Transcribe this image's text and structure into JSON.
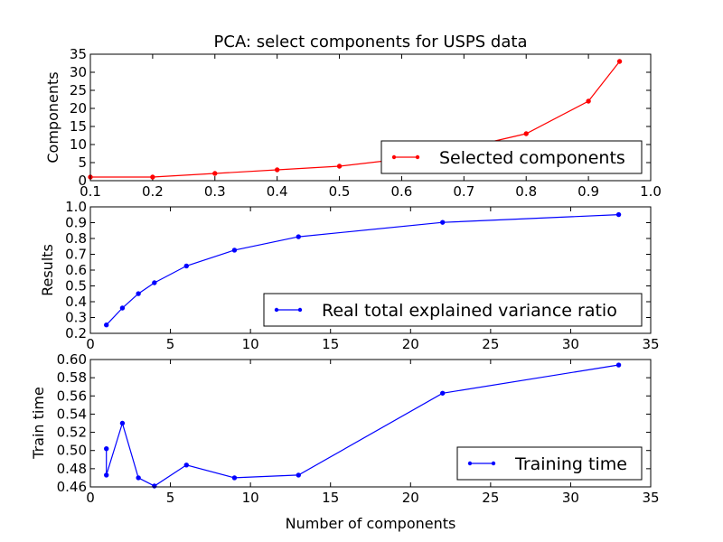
{
  "chart_data": [
    {
      "type": "line",
      "title": "PCA: select components for USPS data",
      "xlabel": "",
      "ylabel": "Components",
      "xlim": [
        0.1,
        1.0
      ],
      "ylim": [
        0,
        35
      ],
      "xticks": [
        "0.1",
        "0.2",
        "0.3",
        "0.4",
        "0.5",
        "0.6",
        "0.7",
        "0.8",
        "0.9",
        "1.0"
      ],
      "yticks": [
        "0",
        "5",
        "10",
        "15",
        "20",
        "25",
        "30",
        "35"
      ],
      "legend_position": "lower-right",
      "series": [
        {
          "name": "Selected components",
          "color": "#ff0000",
          "x": [
            0.1,
            0.2,
            0.3,
            0.4,
            0.5,
            0.6,
            0.7,
            0.8,
            0.9,
            0.95
          ],
          "y": [
            1,
            1,
            2,
            3,
            4,
            6,
            9,
            13,
            22,
            33
          ]
        }
      ]
    },
    {
      "type": "line",
      "title": "",
      "xlabel": "",
      "ylabel": "Results",
      "xlim": [
        0,
        35
      ],
      "ylim": [
        0.2,
        1.0
      ],
      "xticks": [
        "0",
        "5",
        "10",
        "15",
        "20",
        "25",
        "30",
        "35"
      ],
      "yticks": [
        "0.2",
        "0.3",
        "0.4",
        "0.5",
        "0.6",
        "0.7",
        "0.8",
        "0.9",
        "1.0"
      ],
      "legend_position": "lower-right",
      "series": [
        {
          "name": "Real total explained variance ratio",
          "color": "#0000ff",
          "x": [
            1,
            2,
            3,
            4,
            6,
            9,
            13,
            22,
            33
          ],
          "y": [
            0.253,
            0.36,
            0.451,
            0.52,
            0.626,
            0.726,
            0.811,
            0.902,
            0.951
          ]
        }
      ]
    },
    {
      "type": "line",
      "title": "",
      "xlabel": "Number of components",
      "ylabel": "Train time",
      "xlim": [
        0,
        35
      ],
      "ylim": [
        0.46,
        0.6
      ],
      "xticks": [
        "0",
        "5",
        "10",
        "15",
        "20",
        "25",
        "30",
        "35"
      ],
      "yticks": [
        "0.46",
        "0.48",
        "0.50",
        "0.52",
        "0.54",
        "0.56",
        "0.58",
        "0.60"
      ],
      "legend_position": "lower-right",
      "series": [
        {
          "name": "Training time",
          "color": "#0000ff",
          "x": [
            1,
            1,
            2,
            3,
            4,
            6,
            9,
            13,
            22,
            33
          ],
          "y": [
            0.502,
            0.473,
            0.53,
            0.47,
            0.461,
            0.484,
            0.47,
            0.473,
            0.563,
            0.594
          ]
        }
      ]
    }
  ]
}
